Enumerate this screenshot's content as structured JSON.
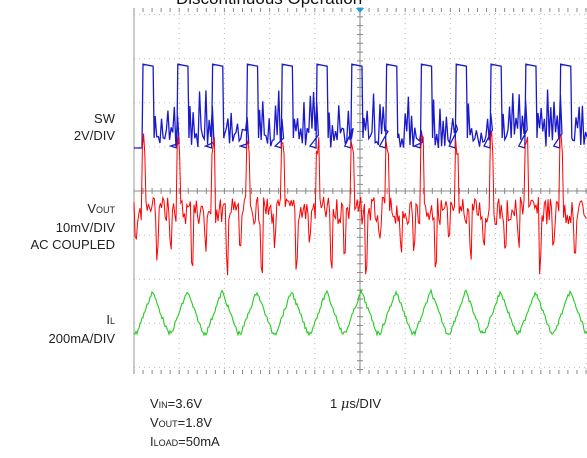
{
  "title": "Discontinuous Operation",
  "channels": [
    {
      "id": "sw",
      "main": "SW",
      "main_sub": "",
      "scale": "2V/DIV",
      "extra": "",
      "color": "#1a1acc"
    },
    {
      "id": "vout",
      "main": "V",
      "main_sub": "OUT",
      "scale": "10mV/DIV",
      "extra": "AC COUPLED",
      "color": "#ff0000"
    },
    {
      "id": "il",
      "main": "I",
      "main_sub": "L",
      "scale": "200mA/DIV",
      "extra": "",
      "color": "#22cc22"
    }
  ],
  "timebase": {
    "value": "1",
    "unit_symbol": "μ",
    "unit_rest": "s/DIV"
  },
  "conditions": [
    {
      "sym": "V",
      "sub": "IN",
      "val": "=3.6V"
    },
    {
      "sym": "V",
      "sub": "OUT",
      "val": "=1.8V"
    },
    {
      "sym": "I",
      "sub": "LOAD",
      "val": "=50mA"
    }
  ],
  "chart_data": {
    "type": "line",
    "title": "Discontinuous Operation",
    "x_unit": "μs",
    "x_range_us": [
      0,
      9.2
    ],
    "switching_period_us": 0.77,
    "series": [
      {
        "name": "SW",
        "scale": "2V/DIV",
        "low_div": -0.1,
        "high_div": 1.9,
        "color": "#1a1acc"
      },
      {
        "name": "VOUT",
        "scale": "10mV/DIV",
        "coupling": "AC COUPLED",
        "ripple_divs": 1.2,
        "color": "#ff0000"
      },
      {
        "name": "IL",
        "scale": "200mA/DIV",
        "peak_div": 1.0,
        "valley_div": 0.05,
        "color": "#22cc22"
      }
    ],
    "grid": true
  }
}
